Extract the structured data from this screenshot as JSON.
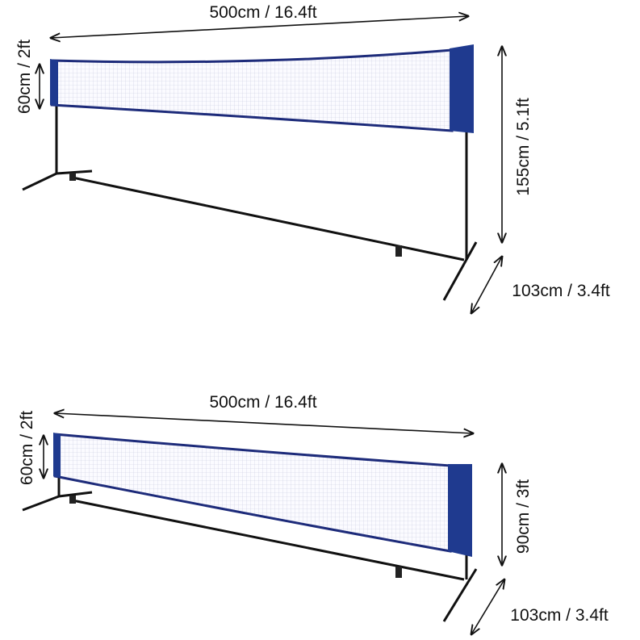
{
  "diagrams": [
    {
      "width": "500cm / 16.4ft",
      "net_height": "60cm / 2ft",
      "total_height": "155cm / 5.1ft",
      "depth": "103cm / 3.4ft"
    },
    {
      "width": "500cm / 16.4ft",
      "net_height": "60cm / 2ft",
      "total_height": "90cm / 3ft",
      "depth": "103cm / 3.4ft"
    }
  ]
}
